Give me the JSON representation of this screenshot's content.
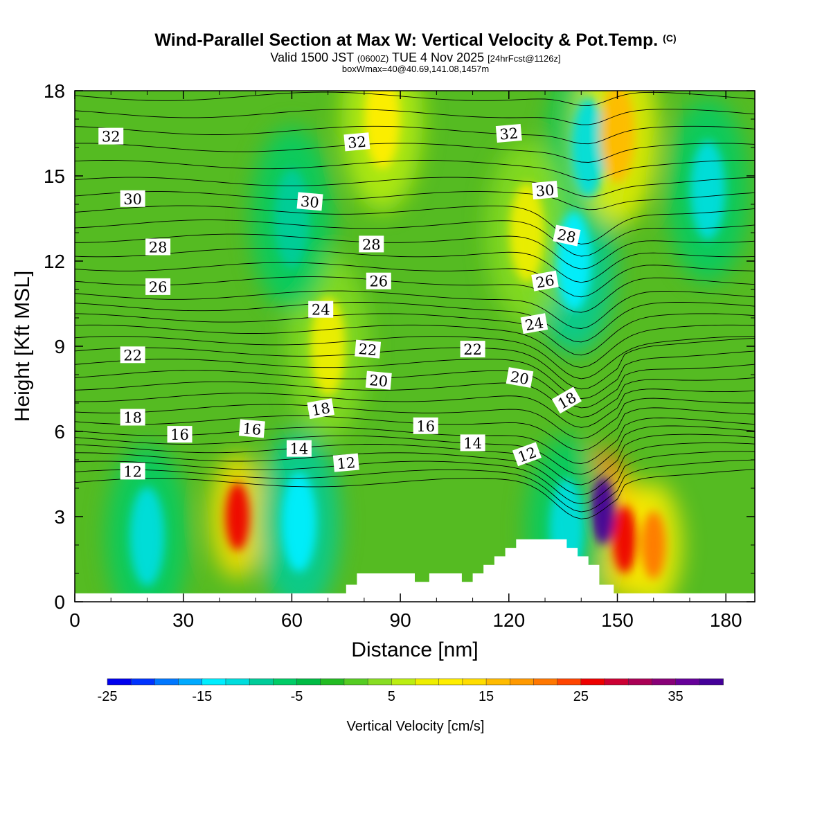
{
  "header": {
    "title": "Wind-Parallel Section at Max W: Vertical Velocity & Pot.Temp.",
    "copyright": "(C)",
    "valid_prefix": "Valid 1500 JST",
    "valid_z": "(0600Z)",
    "valid_date": "TUE 4 Nov 2025",
    "forecast": "[24hrFcst@1126z]",
    "box_max": "boxWmax=40@40.69,141.08,1457m"
  },
  "colorbar": {
    "label": "Vertical Velocity [cm/s]",
    "min": -25,
    "max": 40,
    "step": 2.5,
    "tick_values": [
      -25,
      -15,
      -5,
      5,
      15,
      25,
      35
    ],
    "tick_labels": [
      "-25",
      "-15",
      "-5",
      "5",
      "15",
      "25",
      "35"
    ],
    "colors": [
      "#0000ee",
      "#0033ff",
      "#0077ff",
      "#00aaff",
      "#00eeff",
      "#00dddd",
      "#00cc99",
      "#00cc66",
      "#00bb44",
      "#22bb22",
      "#55cc22",
      "#88dd22",
      "#bbee11",
      "#eeee00",
      "#ffee00",
      "#ffdd00",
      "#ffbb00",
      "#ff9900",
      "#ff7700",
      "#ff4400",
      "#ee0000",
      "#cc0033",
      "#aa0055",
      "#880077",
      "#660099",
      "#440099"
    ]
  },
  "chart_data": {
    "type": "heatmap",
    "xlabel": "Distance [nm]",
    "ylabel": "Height [Kft MSL]",
    "xlim": [
      0,
      188
    ],
    "ylim": [
      0,
      18
    ],
    "x_ticks": [
      0,
      30,
      60,
      90,
      120,
      150,
      180
    ],
    "x_tick_labels": [
      "0",
      "30",
      "60",
      "90",
      "120",
      "150",
      "180"
    ],
    "y_ticks": [
      0,
      3,
      6,
      9,
      12,
      15,
      18
    ],
    "y_tick_labels": [
      "0",
      "3",
      "6",
      "9",
      "12",
      "15",
      "18"
    ],
    "terrain": [
      [
        0,
        0.3
      ],
      [
        75,
        0.3
      ],
      [
        75,
        0.6
      ],
      [
        78,
        0.6
      ],
      [
        78,
        1.0
      ],
      [
        94,
        1.0
      ],
      [
        94,
        0.7
      ],
      [
        98,
        0.7
      ],
      [
        98,
        1.0
      ],
      [
        107,
        1.0
      ],
      [
        107,
        0.7
      ],
      [
        110,
        0.7
      ],
      [
        110,
        1.0
      ],
      [
        113,
        1.0
      ],
      [
        113,
        1.3
      ],
      [
        116,
        1.3
      ],
      [
        116,
        1.6
      ],
      [
        119,
        1.6
      ],
      [
        119,
        1.9
      ],
      [
        122,
        1.9
      ],
      [
        122,
        2.2
      ],
      [
        136,
        2.2
      ],
      [
        136,
        1.9
      ],
      [
        139,
        1.9
      ],
      [
        139,
        1.6
      ],
      [
        142,
        1.6
      ],
      [
        142,
        1.3
      ],
      [
        145,
        1.3
      ],
      [
        145,
        0.6
      ],
      [
        149,
        0.6
      ],
      [
        149,
        0.3
      ],
      [
        188,
        0.3
      ]
    ],
    "w_features": [
      {
        "x": 45,
        "y": 3.0,
        "w": 25
      },
      {
        "x": 146,
        "y": 3.2,
        "w": 40
      },
      {
        "x": 152,
        "y": 2.2,
        "w": 25
      },
      {
        "x": 160,
        "y": 2.0,
        "w": 20
      },
      {
        "x": 62,
        "y": 2.8,
        "w": -15
      },
      {
        "x": 20,
        "y": 2.3,
        "w": -12
      },
      {
        "x": 136,
        "y": 2.6,
        "w": -12
      },
      {
        "x": 138,
        "y": 12.0,
        "w": -15
      },
      {
        "x": 142,
        "y": 16.0,
        "w": -12
      },
      {
        "x": 150,
        "y": 16.5,
        "w": 15
      },
      {
        "x": 85,
        "y": 17.0,
        "w": 10
      },
      {
        "x": 70,
        "y": 9.0,
        "w": 8
      },
      {
        "x": 125,
        "y": 13.0,
        "w": 8
      },
      {
        "x": 175,
        "y": 14.5,
        "w": -12
      },
      {
        "x": 60,
        "y": 13.5,
        "w": -10
      }
    ],
    "theta_labels": [
      {
        "text": "32",
        "x": 10,
        "y": 16.4,
        "angle": 0
      },
      {
        "text": "32",
        "x": 78,
        "y": 16.2,
        "angle": -5
      },
      {
        "text": "32",
        "x": 120,
        "y": 16.5,
        "angle": -5
      },
      {
        "text": "30",
        "x": 16,
        "y": 14.2,
        "angle": 0
      },
      {
        "text": "30",
        "x": 65,
        "y": 14.1,
        "angle": 5
      },
      {
        "text": "30",
        "x": 130,
        "y": 14.5,
        "angle": -5
      },
      {
        "text": "28",
        "x": 23,
        "y": 12.5,
        "angle": 0
      },
      {
        "text": "28",
        "x": 82,
        "y": 12.6,
        "angle": 0
      },
      {
        "text": "28",
        "x": 136,
        "y": 12.9,
        "angle": 12
      },
      {
        "text": "26",
        "x": 23,
        "y": 11.1,
        "angle": 0
      },
      {
        "text": "26",
        "x": 84,
        "y": 11.3,
        "angle": 0
      },
      {
        "text": "26",
        "x": 130,
        "y": 11.3,
        "angle": -10
      },
      {
        "text": "24",
        "x": 68,
        "y": 10.3,
        "angle": 0
      },
      {
        "text": "24",
        "x": 127,
        "y": 9.8,
        "angle": -10
      },
      {
        "text": "22",
        "x": 16,
        "y": 8.7,
        "angle": 0
      },
      {
        "text": "22",
        "x": 81,
        "y": 8.9,
        "angle": 5
      },
      {
        "text": "22",
        "x": 110,
        "y": 8.9,
        "angle": 0
      },
      {
        "text": "20",
        "x": 84,
        "y": 7.8,
        "angle": 5
      },
      {
        "text": "20",
        "x": 123,
        "y": 7.9,
        "angle": 10
      },
      {
        "text": "18",
        "x": 16,
        "y": 6.5,
        "angle": 0
      },
      {
        "text": "18",
        "x": 68,
        "y": 6.8,
        "angle": -10
      },
      {
        "text": "18",
        "x": 136,
        "y": 7.1,
        "angle": -30
      },
      {
        "text": "16",
        "x": 29,
        "y": 5.9,
        "angle": 0
      },
      {
        "text": "16",
        "x": 49,
        "y": 6.1,
        "angle": 5
      },
      {
        "text": "16",
        "x": 97,
        "y": 6.2,
        "angle": 0
      },
      {
        "text": "14",
        "x": 62,
        "y": 5.4,
        "angle": 0
      },
      {
        "text": "14",
        "x": 110,
        "y": 5.6,
        "angle": 0
      },
      {
        "text": "12",
        "x": 16,
        "y": 4.6,
        "angle": 0
      },
      {
        "text": "12",
        "x": 75,
        "y": 4.9,
        "angle": -5
      },
      {
        "text": "12",
        "x": 125,
        "y": 5.2,
        "angle": -20
      }
    ]
  }
}
